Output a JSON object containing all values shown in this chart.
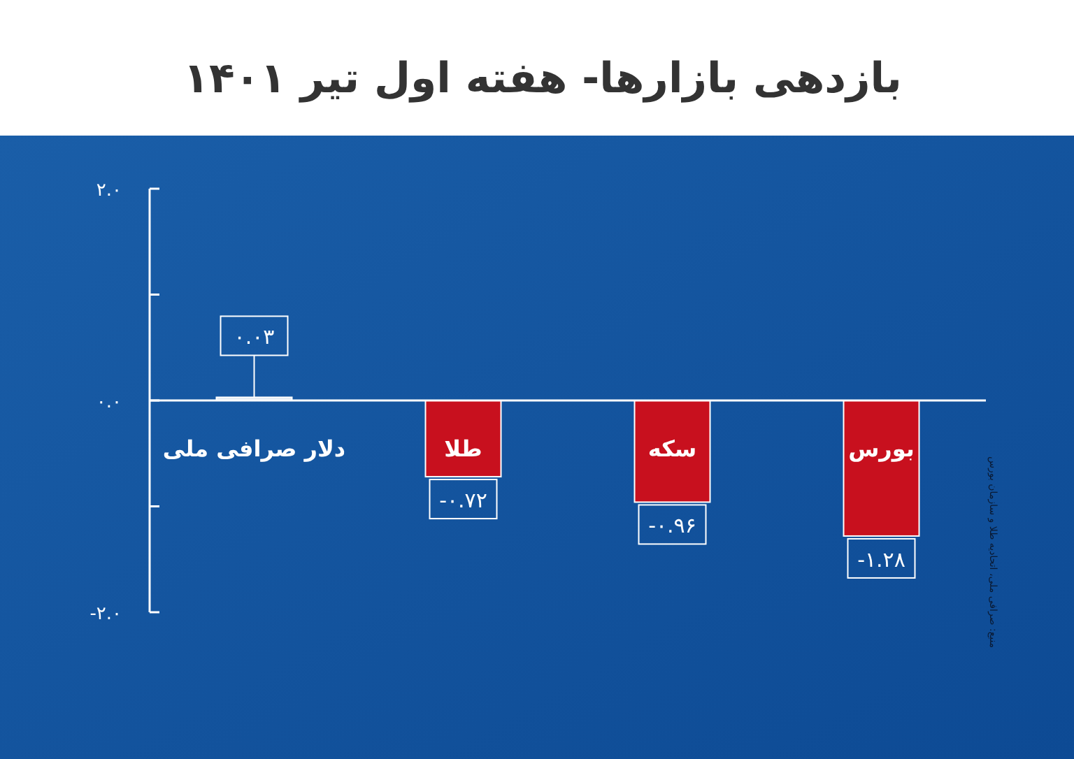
{
  "chart_data": {
    "type": "bar",
    "title": "بازدهی بازارها- هفته اول تیر ۱۴۰۱",
    "categories": [
      "دلار صرافی ملی",
      "طلا",
      "سکه",
      "بورس"
    ],
    "values": [
      0.03,
      -0.72,
      -0.96,
      -1.28
    ],
    "colors": [
      "#dfe9f3",
      "#c8101e",
      "#c8101e",
      "#c8101e"
    ],
    "value_labels": [
      "۰.۰۳",
      "-۰.۷۲",
      "-۰.۹۶",
      "-۱.۲۸"
    ],
    "ylim": [
      -2,
      2
    ],
    "yticks": [
      {
        "value": -2,
        "label": "-۲.۰"
      },
      {
        "value": -1,
        "label": null
      },
      {
        "value": 0,
        "label": "۰.۰"
      },
      {
        "value": 1,
        "label": null
      },
      {
        "value": 2,
        "label": "۲.۰"
      }
    ],
    "grid": false,
    "annotations": [
      "منبع: صرافی ملی، اتحادیه طلا و سازمان بورس"
    ]
  }
}
